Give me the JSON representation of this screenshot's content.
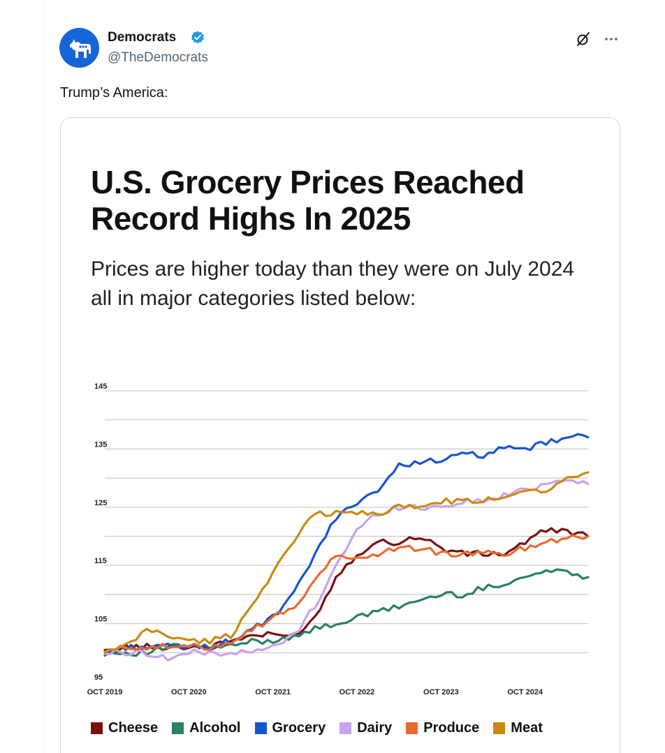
{
  "post": {
    "author_name": "Democrats",
    "handle": "@TheDemocrats",
    "text": "Trump’s America:",
    "avatar_icon": "donkey-icon",
    "verified_icon": "verified-badge-icon",
    "verified_color": "#1d9bf0",
    "grok_icon": "grok-icon",
    "more_icon": "more-icon",
    "more_label": "···"
  },
  "chart_data": {
    "type": "line",
    "title": "U.S. Grocery Prices Reached Record Highs In 2025",
    "subtitle": "Prices are higher today than they were on July 2024 all in major categories listed below:",
    "xlabel": "",
    "ylabel": "",
    "x_ticks": [
      "OCT 2019",
      "OCT 2020",
      "OCT 2021",
      "OCT 2022",
      "OCT 2023",
      "OCT 2024"
    ],
    "y_ticks": [
      95,
      105,
      115,
      125,
      135,
      145
    ],
    "ylim": [
      95,
      145
    ],
    "xlim": [
      0,
      69
    ],
    "grid": true,
    "legend_position": "bottom",
    "x": [
      0,
      3,
      6,
      9,
      12,
      15,
      18,
      21,
      24,
      27,
      30,
      33,
      36,
      39,
      42,
      45,
      48,
      51,
      54,
      57,
      60,
      63,
      66,
      69
    ],
    "series": [
      {
        "name": "Cheese",
        "color": "#7a1111",
        "values": [
          100,
          101,
          101,
          101,
          101,
          101,
          102,
          103,
          103,
          103,
          106,
          113,
          117,
          119,
          119,
          120,
          118,
          117,
          117,
          117,
          119,
          121,
          121,
          120
        ]
      },
      {
        "name": "Alcohol",
        "color": "#2a8061",
        "values": [
          100,
          100,
          100,
          101,
          101,
          101,
          101,
          102,
          102,
          103,
          104,
          105,
          106,
          107,
          108,
          109,
          110,
          110,
          111,
          112,
          113,
          114,
          114,
          113
        ]
      },
      {
        "name": "Grocery",
        "color": "#1555cf",
        "values": [
          100,
          101,
          101,
          101,
          101,
          101,
          102,
          104,
          106,
          110,
          117,
          123,
          126,
          128,
          132,
          133,
          133,
          134,
          134,
          135,
          135,
          136,
          137,
          137
        ]
      },
      {
        "name": "Dairy",
        "color": "#c7a2f0",
        "values": [
          100,
          100,
          100,
          99,
          100,
          100,
          100,
          100,
          101,
          103,
          108,
          115,
          121,
          124,
          125,
          125,
          125,
          126,
          126,
          127,
          128,
          129,
          130,
          129
        ]
      },
      {
        "name": "Produce",
        "color": "#e86b2e",
        "values": [
          100,
          101,
          101,
          101,
          101,
          101,
          102,
          104,
          106,
          108,
          112,
          117,
          116,
          117,
          118,
          118,
          117,
          117,
          117,
          117,
          118,
          119,
          120,
          120
        ]
      },
      {
        "name": "Meat",
        "color": "#c98b13",
        "values": [
          100,
          101,
          104,
          103,
          102,
          102,
          103,
          108,
          114,
          119,
          124,
          124,
          124,
          124,
          125,
          125,
          126,
          126,
          126,
          127,
          128,
          128,
          130,
          131
        ]
      }
    ]
  }
}
